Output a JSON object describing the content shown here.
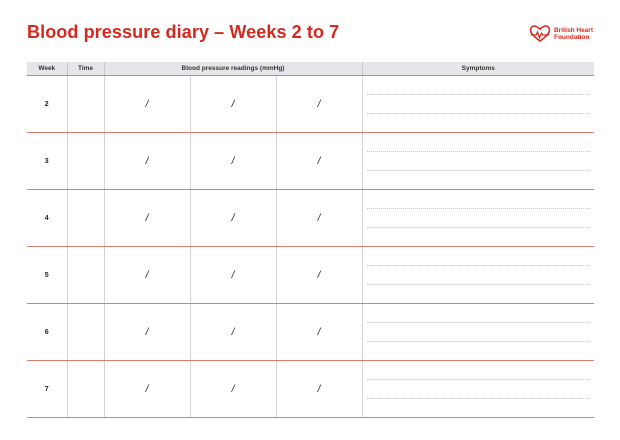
{
  "header": {
    "title": "Blood pressure diary – Weeks 2 to 7",
    "brand_line1": "British Heart",
    "brand_line2": "Foundation",
    "brand_icon": "heart-logo-icon"
  },
  "table": {
    "columns": {
      "week": "Week",
      "time": "Time",
      "readings": "Blood pressure readings (mmHg)",
      "symptoms": "Symptoms"
    },
    "rows": [
      {
        "week": "2",
        "r1": "/",
        "r2": "/",
        "r3": "/"
      },
      {
        "week": "3",
        "r1": "/",
        "r2": "/",
        "r3": "/"
      },
      {
        "week": "4",
        "r1": "/",
        "r2": "/",
        "r3": "/"
      },
      {
        "week": "5",
        "r1": "/",
        "r2": "/",
        "r3": "/"
      },
      {
        "week": "6",
        "r1": "/",
        "r2": "/",
        "r3": "/"
      },
      {
        "week": "7",
        "r1": "/",
        "r2": "/",
        "r3": "/"
      }
    ]
  },
  "colors": {
    "brand_red": "#d6281e",
    "header_bg": "#e6e6ea",
    "row_divider": "#e07a72"
  }
}
